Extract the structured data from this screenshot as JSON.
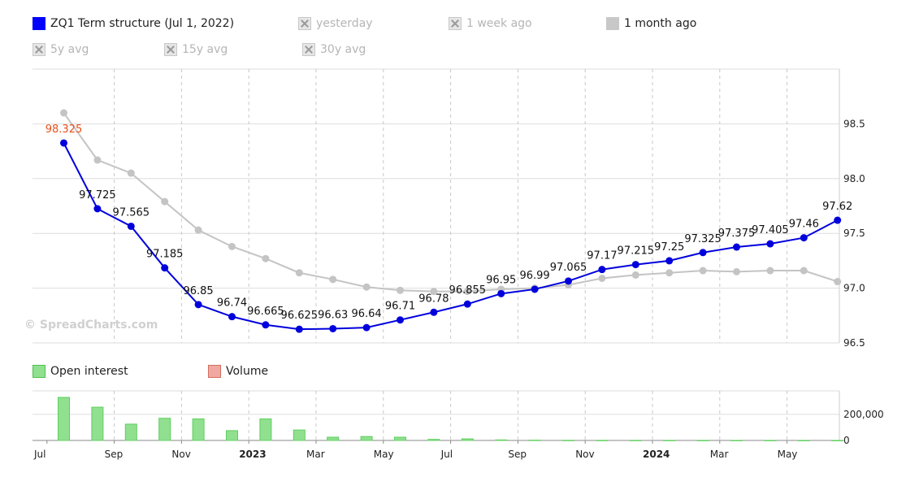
{
  "legend": {
    "main": "ZQ1 Term structure (Jul 1, 2022)",
    "yesterday": "yesterday",
    "week_ago": "1 week ago",
    "month_ago": "1 month ago",
    "avg5": "5y avg",
    "avg15": "15y avg",
    "avg30": "30y avg"
  },
  "lower_legend": {
    "open_interest": "Open interest",
    "volume": "Volume"
  },
  "watermark": "© SpreadCharts.com",
  "colors": {
    "main": "#0000dd",
    "month_ago": "#c4c4c4",
    "open_interest": "#90e090",
    "first_label": "#e8501a"
  },
  "chart_data": [
    {
      "type": "line",
      "x": [
        "Jul 2022",
        "Aug 2022",
        "Sep 2022",
        "Oct 2022",
        "Nov 2022",
        "Dec 2022",
        "Jan 2023",
        "Feb 2023",
        "Mar 2023",
        "Apr 2023",
        "May 2023",
        "Jun 2023",
        "Jul 2023",
        "Aug 2023",
        "Sep 2023",
        "Oct 2023",
        "Nov 2023",
        "Dec 2023",
        "Jan 2024",
        "Feb 2024",
        "Mar 2024",
        "Apr 2024",
        "May 2024",
        "Jun 2024"
      ],
      "series": [
        {
          "name": "ZQ1 Term structure (Jul 1, 2022)",
          "values": [
            98.325,
            97.725,
            97.565,
            97.185,
            96.85,
            96.74,
            96.665,
            96.625,
            96.63,
            96.64,
            96.71,
            96.78,
            96.855,
            96.95,
            96.99,
            97.065,
            97.17,
            97.215,
            97.25,
            97.325,
            97.375,
            97.405,
            97.46,
            97.62
          ],
          "labels": [
            "98.325",
            "97.725",
            "97.565",
            "97.185",
            "96.85",
            "96.74",
            "96.665",
            "96.625",
            "96.63",
            "96.64",
            "96.71",
            "96.78",
            "96.855",
            "96.95",
            "96.99",
            "97.065",
            "97.17",
            "97.215",
            "97.25",
            "97.325",
            "97.375",
            "97.405",
            "97.46",
            "97.62"
          ]
        },
        {
          "name": "1 month ago",
          "values": [
            98.6,
            98.17,
            98.05,
            97.79,
            97.53,
            97.38,
            97.27,
            97.14,
            97.08,
            97.01,
            96.98,
            96.97,
            96.97,
            96.99,
            97.0,
            97.03,
            97.09,
            97.12,
            97.14,
            97.16,
            97.15,
            97.16,
            97.16,
            97.06
          ]
        }
      ],
      "y_ticks": [
        "96.5",
        "97.0",
        "97.5",
        "98.0",
        "98.5"
      ],
      "ylim": [
        96.5,
        99.0
      ],
      "x_ticks": [
        {
          "label": "Jul",
          "bold": false
        },
        {
          "label": "Sep",
          "bold": false
        },
        {
          "label": "Nov",
          "bold": false
        },
        {
          "label": "2023",
          "bold": true
        },
        {
          "label": "Mar",
          "bold": false
        },
        {
          "label": "May",
          "bold": false
        },
        {
          "label": "Jul",
          "bold": false
        },
        {
          "label": "Sep",
          "bold": false
        },
        {
          "label": "Nov",
          "bold": false
        },
        {
          "label": "2024",
          "bold": true
        },
        {
          "label": "Mar",
          "bold": false
        },
        {
          "label": "May",
          "bold": false
        }
      ],
      "grid": true
    },
    {
      "type": "bar",
      "series": [
        {
          "name": "Open interest",
          "values": [
            330000,
            255000,
            125000,
            170000,
            165000,
            75000,
            165000,
            80000,
            25000,
            30000,
            25000,
            8000,
            12000,
            4000,
            2000,
            1000,
            800,
            600,
            500,
            400,
            300,
            300,
            200,
            200
          ]
        }
      ],
      "y_ticks": [
        "0",
        "200,000"
      ],
      "ylim": [
        0,
        380000
      ]
    }
  ]
}
